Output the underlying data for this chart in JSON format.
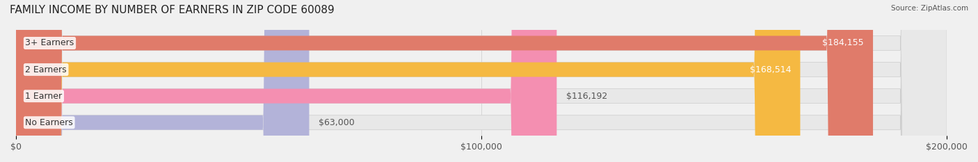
{
  "title": "FAMILY INCOME BY NUMBER OF EARNERS IN ZIP CODE 60089",
  "source": "Source: ZipAtlas.com",
  "categories": [
    "No Earners",
    "1 Earner",
    "2 Earners",
    "3+ Earners"
  ],
  "values": [
    63000,
    116192,
    168514,
    184155
  ],
  "value_labels": [
    "$63,000",
    "$116,192",
    "$168,514",
    "$184,155"
  ],
  "bar_colors": [
    "#b3b3d9",
    "#f48fb1",
    "#f5b942",
    "#e07b6a"
  ],
  "bar_edge_colors": [
    "#a0a0cc",
    "#e07898",
    "#e0a830",
    "#cc6655"
  ],
  "background_color": "#f0f0f0",
  "bar_bg_color": "#e8e8e8",
  "xlim": [
    0,
    200000
  ],
  "xticks": [
    0,
    100000,
    200000
  ],
  "xtick_labels": [
    "$0",
    "$100,000",
    "$200,000"
  ],
  "title_fontsize": 11,
  "label_fontsize": 9,
  "value_fontsize": 9,
  "bar_height": 0.55,
  "figsize": [
    14.06,
    2.33
  ],
  "dpi": 100
}
